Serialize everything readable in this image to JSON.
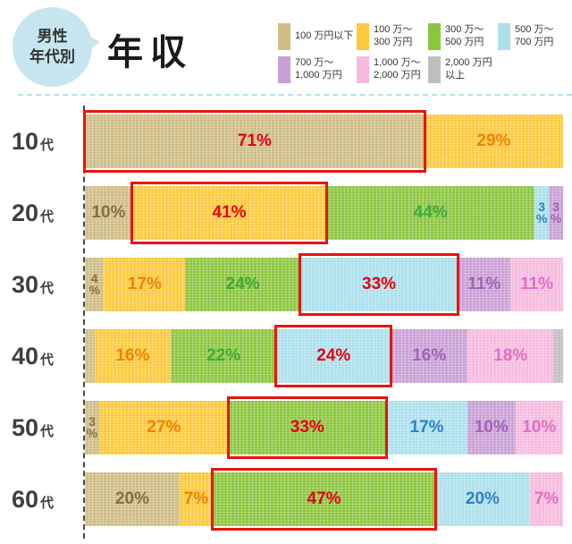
{
  "header": {
    "bubble_label": "男性\n年代別",
    "title": "年収"
  },
  "chart_data": {
    "type": "bar",
    "variant": "horizontal-stacked",
    "title": "男性 年代別 年収",
    "unit": "%",
    "legend_position": "top-right",
    "highlight_border_color": "#e8150c",
    "highlight_label_color": "#e60012",
    "bands": [
      {
        "label": "100 万円以下",
        "fill": "#cfbd85",
        "label_color": "#8a6d42"
      },
      {
        "label": "100 万～\n300 万円",
        "fill": "#fcc93c",
        "label_color": "#f08300"
      },
      {
        "label": "300 万～\n500 万円",
        "fill": "#8cc63f",
        "label_color": "#3faa3a"
      },
      {
        "label": "500 万～\n700 万円",
        "fill": "#abe0ec",
        "label_color": "#2e82c4"
      },
      {
        "label": "700 万～\n1,000 万円",
        "fill": "#c9a0d5",
        "label_color": "#a163b8"
      },
      {
        "label": "1,000 万～\n2,000 万円",
        "fill": "#f6badf",
        "label_color": "#e26ec4"
      },
      {
        "label": "2,000 万円以上",
        "fill": "#bfbfbf",
        "label_color": "#888888"
      }
    ],
    "categories": [
      "10",
      "20",
      "30",
      "40",
      "50",
      "60"
    ],
    "category_suffix": "代",
    "rows": [
      {
        "category": "10",
        "segments": [
          {
            "band": 0,
            "value": 71,
            "highlight": true
          },
          {
            "band": 1,
            "value": 29
          }
        ]
      },
      {
        "category": "20",
        "segments": [
          {
            "band": 0,
            "value": 10
          },
          {
            "band": 1,
            "value": 41,
            "highlight": true
          },
          {
            "band": 2,
            "value": 44
          },
          {
            "band": 3,
            "value": 3,
            "stacked": true
          },
          {
            "band": 4,
            "value": 3,
            "stacked": true
          }
        ]
      },
      {
        "category": "30",
        "segments": [
          {
            "band": 0,
            "value": 4,
            "stacked": true
          },
          {
            "band": 1,
            "value": 17
          },
          {
            "band": 2,
            "value": 24
          },
          {
            "band": 3,
            "value": 33,
            "highlight": true
          },
          {
            "band": 4,
            "value": 11
          },
          {
            "band": 5,
            "value": 11
          }
        ]
      },
      {
        "category": "40",
        "segments": [
          {
            "band": 0,
            "value": 2,
            "nolabel": true
          },
          {
            "band": 1,
            "value": 16
          },
          {
            "band": 2,
            "value": 22
          },
          {
            "band": 3,
            "value": 24,
            "highlight": true
          },
          {
            "band": 4,
            "value": 16
          },
          {
            "band": 5,
            "value": 18
          },
          {
            "band": 6,
            "value": 2,
            "nolabel": true
          }
        ]
      },
      {
        "category": "50",
        "segments": [
          {
            "band": 0,
            "value": 3,
            "stacked": true
          },
          {
            "band": 1,
            "value": 27
          },
          {
            "band": 2,
            "value": 33,
            "highlight": true
          },
          {
            "band": 3,
            "value": 17
          },
          {
            "band": 4,
            "value": 10
          },
          {
            "band": 5,
            "value": 10
          }
        ]
      },
      {
        "category": "60",
        "segments": [
          {
            "band": 0,
            "value": 20
          },
          {
            "band": 1,
            "value": 7
          },
          {
            "band": 2,
            "value": 47,
            "highlight": true
          },
          {
            "band": 3,
            "value": 20
          },
          {
            "band": 5,
            "value": 7
          }
        ]
      }
    ]
  }
}
